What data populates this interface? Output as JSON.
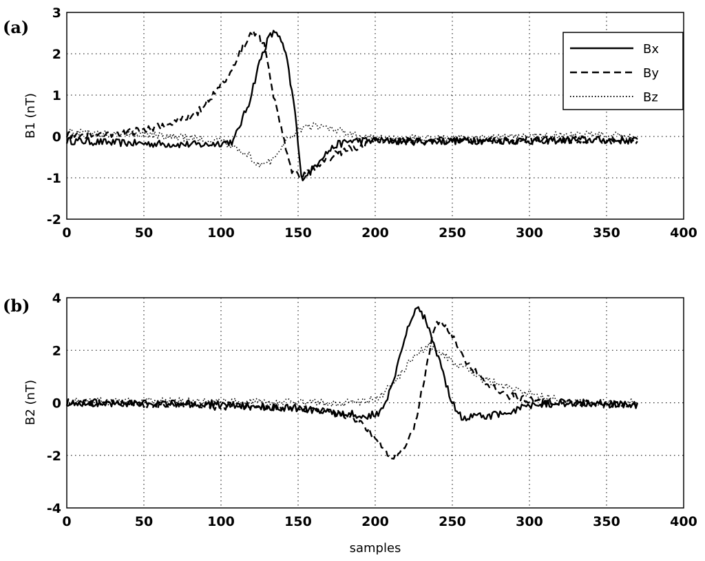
{
  "chart_data": [
    {
      "type": "line",
      "panel_label": "(a)",
      "ylabel": "B1 (nT)",
      "xlabel": "",
      "xlim": [
        0,
        400
      ],
      "ylim": [
        -2,
        3
      ],
      "xticks": [
        0,
        50,
        100,
        150,
        200,
        250,
        300,
        350,
        400
      ],
      "yticks": [
        -2,
        -1,
        0,
        1,
        2,
        3
      ],
      "grid": true,
      "legend_position": "top-right",
      "legend": [
        "Bx",
        "By",
        "Bz"
      ],
      "series": [
        {
          "name": "Bx",
          "style": "solid",
          "x": [
            0,
            30,
            60,
            90,
            108,
            118,
            125,
            131,
            136,
            142,
            148,
            152,
            158,
            165,
            175,
            185,
            200,
            230,
            260,
            300,
            340,
            370
          ],
          "y": [
            -0.1,
            -0.15,
            -0.18,
            -0.2,
            -0.12,
            0.8,
            1.8,
            2.4,
            2.55,
            2.0,
            0.6,
            -1.0,
            -0.85,
            -0.5,
            -0.2,
            -0.1,
            -0.1,
            -0.12,
            -0.1,
            -0.1,
            -0.08,
            -0.1
          ]
        },
        {
          "name": "By",
          "style": "dashed",
          "x": [
            0,
            30,
            50,
            70,
            85,
            95,
            105,
            112,
            118,
            122,
            128,
            134,
            140,
            146,
            152,
            160,
            175,
            200,
            260,
            300,
            340,
            370
          ],
          "y": [
            0.05,
            0.05,
            0.15,
            0.35,
            0.6,
            1.0,
            1.5,
            2.0,
            2.4,
            2.5,
            2.2,
            1.0,
            0.0,
            -0.8,
            -1.0,
            -0.8,
            -0.4,
            -0.12,
            -0.1,
            -0.1,
            -0.08,
            -0.1
          ]
        },
        {
          "name": "Bz",
          "style": "dotted",
          "x": [
            0,
            50,
            100,
            115,
            125,
            132,
            140,
            150,
            160,
            175,
            190,
            200,
            230,
            260,
            300,
            340,
            370
          ],
          "y": [
            0.1,
            0.05,
            -0.1,
            -0.35,
            -0.7,
            -0.6,
            -0.2,
            0.15,
            0.25,
            0.15,
            0.0,
            -0.05,
            -0.05,
            -0.05,
            0.0,
            0.05,
            0.0
          ]
        }
      ]
    },
    {
      "type": "line",
      "panel_label": "(b)",
      "ylabel": "B2 (nT)",
      "xlabel": "samples",
      "xlim": [
        0,
        400
      ],
      "ylim": [
        -4,
        4
      ],
      "xticks": [
        0,
        50,
        100,
        150,
        200,
        250,
        300,
        350,
        400
      ],
      "yticks": [
        -4,
        -2,
        0,
        2,
        4
      ],
      "grid": true,
      "series": [
        {
          "name": "Bx",
          "style": "solid",
          "x": [
            0,
            50,
            100,
            150,
            180,
            195,
            205,
            212,
            218,
            224,
            228,
            234,
            242,
            250,
            256,
            262,
            275,
            290,
            300,
            320,
            350,
            370
          ],
          "y": [
            0.0,
            0.0,
            -0.05,
            -0.2,
            -0.4,
            -0.5,
            -0.3,
            0.8,
            2.2,
            3.3,
            3.6,
            3.0,
            1.5,
            0.0,
            -0.6,
            -0.5,
            -0.5,
            -0.3,
            -0.1,
            0.0,
            0.0,
            -0.1
          ]
        },
        {
          "name": "By",
          "style": "dashed",
          "x": [
            0,
            150,
            185,
            195,
            203,
            210,
            218,
            225,
            232,
            238,
            242,
            250,
            260,
            272,
            285,
            300,
            320,
            370
          ],
          "y": [
            0.0,
            -0.2,
            -0.5,
            -1.0,
            -1.6,
            -2.05,
            -1.8,
            -1.0,
            1.0,
            2.8,
            3.2,
            2.5,
            1.5,
            0.7,
            0.3,
            0.1,
            0.0,
            -0.1
          ]
        },
        {
          "name": "Bz",
          "style": "dotted",
          "x": [
            0,
            100,
            150,
            190,
            205,
            215,
            225,
            235,
            245,
            255,
            270,
            290,
            310,
            340,
            370
          ],
          "y": [
            0.05,
            0.05,
            0.0,
            0.0,
            0.3,
            1.0,
            1.8,
            2.2,
            1.8,
            1.4,
            0.9,
            0.5,
            0.2,
            0.0,
            0.0
          ]
        }
      ]
    }
  ]
}
